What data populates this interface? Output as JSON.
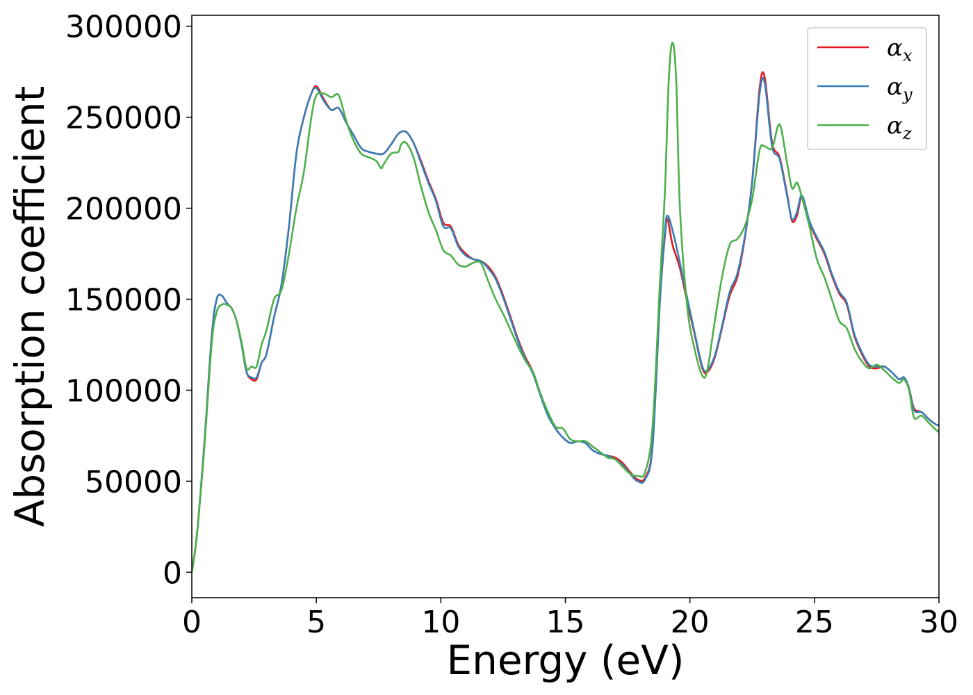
{
  "chart_data": {
    "type": "line",
    "title": "",
    "xlabel": "Energy (eV)",
    "ylabel": "Absorption coefficient",
    "xlim": [
      0,
      30
    ],
    "ylim": [
      -14000,
      306000
    ],
    "xticks": [
      0,
      5,
      10,
      15,
      20,
      25,
      30
    ],
    "yticks": [
      0,
      50000,
      100000,
      150000,
      200000,
      250000,
      300000
    ],
    "xtick_labels": [
      "0",
      "5",
      "10",
      "15",
      "20",
      "25",
      "30"
    ],
    "ytick_labels": [
      "0",
      "50000",
      "100000",
      "150000",
      "200000",
      "250000",
      "300000"
    ],
    "grid": false,
    "legend_position": "top-right",
    "series": [
      {
        "name": "αx",
        "legend_base": "α",
        "legend_sub": "x",
        "color": "#e41a1c",
        "x": [
          0,
          0.2,
          0.5,
          0.8,
          1.0,
          1.2,
          1.4,
          1.6,
          1.8,
          2.0,
          2.2,
          2.4,
          2.6,
          2.8,
          3.0,
          3.3,
          3.6,
          3.9,
          4.2,
          4.5,
          4.8,
          5.0,
          5.3,
          5.6,
          5.9,
          6.2,
          6.5,
          6.8,
          7.1,
          7.4,
          7.7,
          8.0,
          8.3,
          8.6,
          8.9,
          9.2,
          9.5,
          9.8,
          10.1,
          10.4,
          10.7,
          11.0,
          11.3,
          11.6,
          11.9,
          12.2,
          12.5,
          12.8,
          13.1,
          13.4,
          13.7,
          14.0,
          14.3,
          14.6,
          14.9,
          15.2,
          15.5,
          15.8,
          16.1,
          16.4,
          16.7,
          17.0,
          17.3,
          17.6,
          17.9,
          18.2,
          18.5,
          18.8,
          19.0,
          19.1,
          19.3,
          19.6,
          19.9,
          20.2,
          20.5,
          20.7,
          21.0,
          21.3,
          21.6,
          21.9,
          22.2,
          22.5,
          22.8,
          23.0,
          23.3,
          23.6,
          23.9,
          24.1,
          24.3,
          24.5,
          24.8,
          25.1,
          25.4,
          25.7,
          26.0,
          26.3,
          26.6,
          26.9,
          27.2,
          27.5,
          27.8,
          28.1,
          28.4,
          28.6,
          28.8,
          29.0,
          29.3,
          29.6,
          29.9,
          30.0
        ],
        "y": [
          0,
          20000,
          70000,
          130000,
          150000,
          152000,
          148000,
          145000,
          138000,
          125000,
          110000,
          106000,
          106000,
          115000,
          120000,
          140000,
          158000,
          190000,
          230000,
          250000,
          263000,
          267000,
          260000,
          254000,
          255000,
          247000,
          240000,
          233000,
          231000,
          230000,
          230000,
          235000,
          241000,
          242000,
          236000,
          226000,
          215000,
          205000,
          192000,
          190000,
          180000,
          175000,
          172000,
          171000,
          168000,
          162000,
          152000,
          140000,
          128000,
          118000,
          110000,
          98000,
          87000,
          79000,
          74000,
          71000,
          72000,
          71000,
          67000,
          65000,
          64000,
          63000,
          60000,
          55000,
          51000,
          52000,
          70000,
          150000,
          185000,
          194000,
          180000,
          167000,
          148000,
          130000,
          112000,
          110000,
          118000,
          135000,
          152000,
          162000,
          183000,
          215000,
          266000,
          272000,
          236000,
          228000,
          208000,
          193000,
          196000,
          206000,
          192000,
          183000,
          175000,
          163000,
          153000,
          147000,
          130000,
          120000,
          113000,
          112000,
          113000,
          110000,
          106000,
          107000,
          101000,
          90000,
          88000,
          84000,
          81000,
          81000
        ]
      },
      {
        "name": "αy",
        "legend_base": "α",
        "legend_sub": "y",
        "color": "#377eb8",
        "x": [
          0,
          0.2,
          0.5,
          0.8,
          1.0,
          1.2,
          1.4,
          1.6,
          1.8,
          2.0,
          2.2,
          2.4,
          2.6,
          2.8,
          3.0,
          3.3,
          3.6,
          3.9,
          4.2,
          4.5,
          4.8,
          5.0,
          5.3,
          5.6,
          5.9,
          6.2,
          6.5,
          6.8,
          7.1,
          7.4,
          7.7,
          8.0,
          8.3,
          8.6,
          8.9,
          9.2,
          9.5,
          9.8,
          10.1,
          10.4,
          10.7,
          11.0,
          11.3,
          11.6,
          11.9,
          12.2,
          12.5,
          12.8,
          13.1,
          13.4,
          13.7,
          14.0,
          14.3,
          14.6,
          14.9,
          15.2,
          15.5,
          15.8,
          16.1,
          16.4,
          16.7,
          17.0,
          17.3,
          17.6,
          17.9,
          18.2,
          18.5,
          18.8,
          19.0,
          19.1,
          19.3,
          19.6,
          19.9,
          20.2,
          20.5,
          20.7,
          21.0,
          21.3,
          21.6,
          21.9,
          22.2,
          22.5,
          22.8,
          23.0,
          23.3,
          23.6,
          23.9,
          24.1,
          24.3,
          24.5,
          24.8,
          25.1,
          25.4,
          25.7,
          26.0,
          26.3,
          26.6,
          26.9,
          27.2,
          27.5,
          27.8,
          28.1,
          28.4,
          28.6,
          28.8,
          29.0,
          29.3,
          29.6,
          29.9,
          30.0
        ],
        "y": [
          0,
          20000,
          70000,
          130000,
          150000,
          152000,
          148000,
          145000,
          138000,
          125000,
          110000,
          107000,
          107000,
          115000,
          120000,
          140000,
          158000,
          190000,
          230000,
          250000,
          263000,
          266000,
          259000,
          254000,
          255000,
          247000,
          240000,
          233000,
          231000,
          230000,
          230000,
          235000,
          241000,
          242000,
          236000,
          225000,
          214000,
          204000,
          190000,
          189000,
          179000,
          174000,
          172000,
          171000,
          167000,
          161000,
          151000,
          139000,
          127000,
          117000,
          109000,
          97000,
          86000,
          79000,
          74000,
          71000,
          72000,
          71000,
          67000,
          65000,
          64000,
          62000,
          59000,
          54000,
          50000,
          51000,
          69000,
          150000,
          187000,
          196000,
          188000,
          170000,
          150000,
          131000,
          113000,
          111000,
          119000,
          136000,
          154000,
          164000,
          184000,
          214000,
          263000,
          269000,
          234000,
          227000,
          207000,
          194000,
          198000,
          207000,
          193000,
          184000,
          176000,
          164000,
          154000,
          148000,
          131000,
          121000,
          114000,
          113000,
          113000,
          110000,
          106000,
          107000,
          101000,
          89000,
          88000,
          84000,
          81000,
          81000
        ]
      },
      {
        "name": "αz",
        "legend_base": "α",
        "legend_sub": "z",
        "color": "#4daf4a",
        "x": [
          0,
          0.2,
          0.5,
          0.8,
          1.0,
          1.2,
          1.4,
          1.6,
          1.8,
          2.0,
          2.2,
          2.4,
          2.6,
          2.8,
          3.0,
          3.3,
          3.6,
          3.9,
          4.2,
          4.5,
          4.8,
          5.0,
          5.3,
          5.6,
          5.9,
          6.2,
          6.5,
          6.8,
          7.1,
          7.4,
          7.6,
          7.7,
          8.0,
          8.3,
          8.4,
          8.6,
          8.9,
          9.2,
          9.5,
          9.8,
          10.1,
          10.4,
          10.7,
          11.0,
          11.3,
          11.6,
          11.9,
          12.2,
          12.5,
          12.8,
          13.1,
          13.4,
          13.7,
          14.0,
          14.3,
          14.6,
          14.9,
          15.2,
          15.5,
          15.8,
          16.1,
          16.4,
          16.7,
          17.0,
          17.3,
          17.6,
          17.9,
          18.2,
          18.5,
          18.8,
          19.0,
          19.15,
          19.3,
          19.45,
          19.6,
          19.9,
          20.2,
          20.5,
          20.7,
          21.0,
          21.3,
          21.6,
          21.9,
          22.2,
          22.5,
          22.8,
          23.0,
          23.3,
          23.6,
          23.9,
          24.1,
          24.3,
          24.5,
          24.8,
          25.1,
          25.4,
          25.7,
          26.0,
          26.3,
          26.6,
          26.9,
          27.2,
          27.5,
          27.8,
          28.1,
          28.4,
          28.6,
          28.8,
          29.0,
          29.3,
          29.6,
          29.9,
          30.0
        ],
        "y": [
          0,
          20000,
          68000,
          126000,
          143000,
          147000,
          147000,
          145000,
          138000,
          126000,
          112000,
          113000,
          113000,
          125000,
          133000,
          150000,
          155000,
          175000,
          200000,
          220000,
          250000,
          262000,
          263000,
          261000,
          262000,
          248000,
          237000,
          230000,
          228000,
          226000,
          222000,
          224000,
          230000,
          231000,
          235000,
          236000,
          228000,
          212000,
          198000,
          188000,
          177000,
          174000,
          169000,
          168000,
          170000,
          170000,
          160000,
          150000,
          142000,
          133000,
          124000,
          116000,
          110000,
          98000,
          88000,
          80000,
          79000,
          73000,
          72000,
          72000,
          69000,
          66000,
          63000,
          62000,
          58000,
          54000,
          53000,
          55000,
          80000,
          160000,
          210000,
          270000,
          291000,
          270000,
          200000,
          145000,
          122000,
          108000,
          111000,
          138000,
          163000,
          180000,
          183000,
          190000,
          205000,
          232000,
          234000,
          233000,
          246000,
          225000,
          211000,
          214000,
          206000,
          190000,
          172000,
          162000,
          150000,
          138000,
          134000,
          123000,
          116000,
          112000,
          114000,
          111000,
          107000,
          104000,
          106000,
          100000,
          85000,
          86000,
          82000,
          78000,
          77000
        ]
      }
    ]
  }
}
